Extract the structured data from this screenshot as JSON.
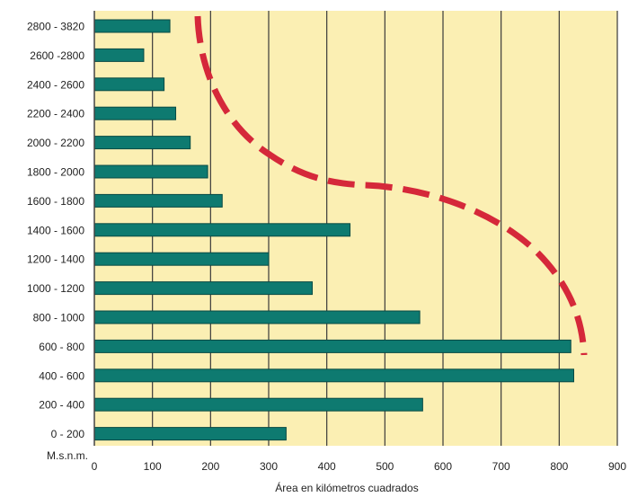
{
  "chart_data": {
    "type": "bar",
    "orientation": "horizontal",
    "categories": [
      "0 - 200",
      "200 - 400",
      "400 - 600",
      "600 - 800",
      "800 - 1000",
      "1000 - 1200",
      "1200 - 1400",
      "1400 - 1600",
      "1600 - 1800",
      "1800 - 2000",
      "2000 - 2200",
      "2200 - 2400",
      "2400 - 2600",
      "2600 -2800",
      "2800 - 3820"
    ],
    "values": [
      330,
      565,
      825,
      820,
      560,
      375,
      300,
      440,
      220,
      195,
      165,
      140,
      120,
      85,
      130
    ],
    "xlabel": "Área en kilómetros cuadrados",
    "ylabel": "M.s.n.m.",
    "xlim": [
      0,
      900
    ],
    "xticks": [
      0,
      100,
      200,
      300,
      400,
      500,
      600,
      700,
      800,
      900
    ],
    "grid": "vertical",
    "annotation": "dashed red curve (hypsometric curve)",
    "colors": {
      "bar": "#0e7a70",
      "bar_edge": "#084a44",
      "plot_background": "#fbefb3",
      "grid": "#3a3a3a",
      "curve": "#d5283a"
    }
  }
}
